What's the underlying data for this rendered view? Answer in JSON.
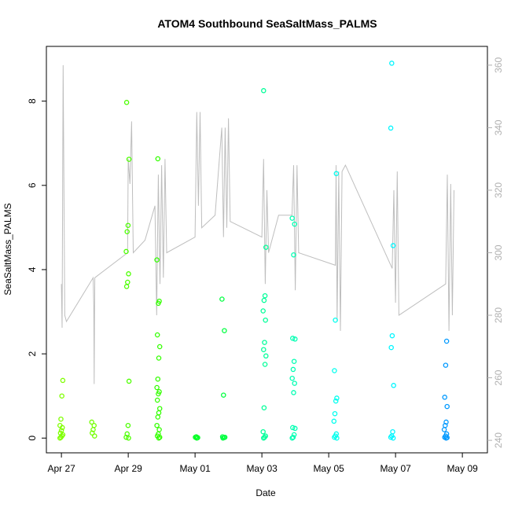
{
  "chart_data": {
    "type": "scatter",
    "title": "ATOM4 Southbound SeaSaltMass_PALMS",
    "xlabel": "Date",
    "ylabel": "SeaSaltMass_PALMS",
    "x_ticks": [
      "Apr 27",
      "Apr 29",
      "May 01",
      "May 03",
      "May 05",
      "May 07",
      "May 09"
    ],
    "y_ticks": [
      "0",
      "2",
      "4",
      "6",
      "8"
    ],
    "y2_ticks": [
      "240",
      "260",
      "280",
      "300",
      "320",
      "340",
      "360"
    ],
    "xlim_days": [
      -0.45,
      12.75
    ],
    "x_origin_label": "Apr 27",
    "ylim": [
      -0.35,
      9.3
    ],
    "y2lim": [
      236,
      366
    ],
    "grid": false,
    "legend": "none",
    "colors": {
      "secondary_line": "#bebebe",
      "right_axis": "#b0b0b0"
    },
    "series": [
      {
        "color": "#7fff00",
        "day": 0.0,
        "values": [
          0,
          0.02,
          0.05,
          0.08,
          0.12,
          0.18,
          0.25,
          0.3,
          0.45,
          1.0,
          1.37
        ]
      },
      {
        "color": "#73ff00",
        "day": 0.95,
        "values": [
          0.05,
          0.12,
          0.2,
          0.3,
          0.38
        ]
      },
      {
        "color": "#4cff00",
        "day": 1.98,
        "values": [
          0,
          0.02,
          0.1,
          0.3,
          1.35,
          3.6,
          3.7,
          3.9,
          4.43,
          4.9,
          5.05,
          6.62,
          7.97
        ]
      },
      {
        "color": "#33ff00",
        "day": 2.9,
        "values": [
          0,
          0.02,
          0.05,
          0.1,
          0.2,
          0.3,
          0.5,
          0.6,
          0.7,
          0.9,
          1.05,
          1.1,
          1.2,
          1.4,
          1.9,
          2.17,
          2.45,
          3.2,
          3.25,
          4.23,
          6.63
        ]
      },
      {
        "color": "#00ff22",
        "day": 4.05,
        "values": [
          0,
          0.01,
          0.02,
          0.03
        ]
      },
      {
        "color": "#00ff40",
        "day": 4.85,
        "values": [
          0,
          0.01,
          0.02,
          0.03,
          1.02,
          2.55,
          3.3
        ]
      },
      {
        "color": "#00ff99",
        "day": 6.08,
        "values": [
          0,
          0.02,
          0.05,
          0.15,
          0.72,
          1.75,
          1.95,
          2.1,
          2.27,
          2.8,
          3.02,
          3.27,
          3.38,
          4.53,
          8.25
        ]
      },
      {
        "color": "#00ffb2",
        "day": 6.95,
        "values": [
          0,
          0.02,
          0.08,
          0.23,
          0.25,
          1.08,
          1.3,
          1.42,
          1.63,
          1.82,
          2.35,
          2.37,
          4.35,
          5.08,
          5.22
        ]
      },
      {
        "color": "#00ffee",
        "day": 8.2,
        "values": [
          0,
          0.02,
          0.05,
          0.1,
          0.4,
          0.58,
          0.88,
          0.95,
          1.6,
          2.8,
          6.28
        ]
      },
      {
        "color": "#00f6ff",
        "day": 9.9,
        "values": [
          0,
          0.02,
          0.05,
          0.15,
          1.25,
          2.15,
          2.43,
          4.57,
          7.36,
          8.9
        ]
      },
      {
        "color": "#0099ff",
        "day": 11.5,
        "values": [
          0,
          0.01,
          0.02,
          0.05,
          0.1,
          0.2,
          0.3,
          0.38,
          0.75,
          0.97,
          1.73,
          2.3
        ]
      }
    ],
    "secondary_line": {
      "axis": "right",
      "color": "#bebebe",
      "points": [
        [
          0.0,
          290
        ],
        [
          0.02,
          276
        ],
        [
          0.05,
          360
        ],
        [
          0.1,
          280
        ],
        [
          0.15,
          278
        ],
        [
          0.95,
          292
        ],
        [
          0.97,
          283
        ],
        [
          0.98,
          258
        ],
        [
          0.99,
          278
        ],
        [
          1.0,
          292
        ],
        [
          1.98,
          300
        ],
        [
          2.0,
          330
        ],
        [
          2.05,
          322
        ],
        [
          2.1,
          342
        ],
        [
          2.15,
          300
        ],
        [
          2.5,
          304
        ],
        [
          2.8,
          315
        ],
        [
          2.85,
          280
        ],
        [
          2.9,
          325
        ],
        [
          2.95,
          290
        ],
        [
          3.0,
          328
        ],
        [
          3.05,
          292
        ],
        [
          3.1,
          330
        ],
        [
          3.15,
          300
        ],
        [
          4.0,
          305
        ],
        [
          4.05,
          345
        ],
        [
          4.1,
          315
        ],
        [
          4.15,
          345
        ],
        [
          4.2,
          308
        ],
        [
          4.6,
          312
        ],
        [
          4.8,
          340
        ],
        [
          4.85,
          305
        ],
        [
          4.9,
          340
        ],
        [
          4.95,
          308
        ],
        [
          5.0,
          343
        ],
        [
          5.05,
          310
        ],
        [
          6.0,
          305
        ],
        [
          6.05,
          330
        ],
        [
          6.1,
          290
        ],
        [
          6.15,
          320
        ],
        [
          6.2,
          300
        ],
        [
          6.5,
          312
        ],
        [
          6.9,
          312
        ],
        [
          6.95,
          328
        ],
        [
          7.0,
          288
        ],
        [
          7.05,
          328
        ],
        [
          7.1,
          300
        ],
        [
          8.2,
          296
        ],
        [
          8.22,
          328
        ],
        [
          8.25,
          278
        ],
        [
          8.3,
          326
        ],
        [
          8.35,
          275
        ],
        [
          8.4,
          326
        ],
        [
          8.5,
          328
        ],
        [
          9.9,
          295
        ],
        [
          9.95,
          320
        ],
        [
          10.0,
          284
        ],
        [
          10.05,
          326
        ],
        [
          10.1,
          280
        ],
        [
          11.5,
          290
        ],
        [
          11.55,
          325
        ],
        [
          11.6,
          275
        ],
        [
          11.65,
          322
        ],
        [
          11.7,
          280
        ],
        [
          11.75,
          320
        ]
      ]
    }
  }
}
